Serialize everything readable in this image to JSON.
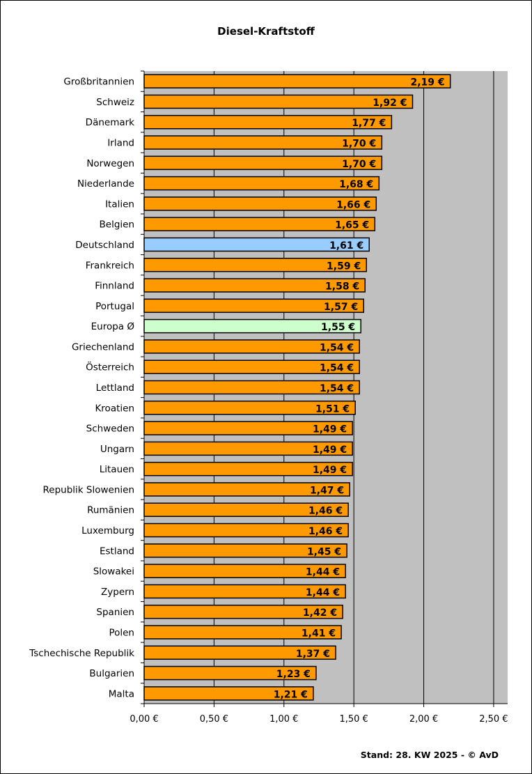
{
  "chart_data": {
    "type": "bar",
    "orientation": "horizontal",
    "title": "Diesel-Kraftstoff",
    "categories": [
      "Großbritannien",
      "Schweiz",
      "Dänemark",
      "Irland",
      "Norwegen",
      "Niederlande",
      "Italien",
      "Belgien",
      "Deutschland",
      "Frankreich",
      "Finnland",
      "Portugal",
      "Europa Ø",
      "Griechenland",
      "Österreich",
      "Lettland",
      "Kroatien",
      "Schweden",
      "Ungarn",
      "Litauen",
      "Republik Slowenien",
      "Rumänien",
      "Luxemburg",
      "Estland",
      "Slowakei",
      "Zypern",
      "Spanien",
      "Polen",
      "Tschechische Republik",
      "Bulgarien",
      "Malta"
    ],
    "values": [
      2.19,
      1.92,
      1.77,
      1.7,
      1.7,
      1.68,
      1.66,
      1.65,
      1.61,
      1.59,
      1.58,
      1.57,
      1.55,
      1.54,
      1.54,
      1.54,
      1.51,
      1.49,
      1.49,
      1.49,
      1.47,
      1.46,
      1.46,
      1.45,
      1.44,
      1.44,
      1.42,
      1.41,
      1.37,
      1.23,
      1.21
    ],
    "value_labels": [
      "2,19 €",
      "1,92 €",
      "1,77 €",
      "1,70 €",
      "1,70 €",
      "1,68 €",
      "1,66 €",
      "1,65 €",
      "1,61 €",
      "1,59 €",
      "1,58 €",
      "1,57 €",
      "1,55 €",
      "1,54 €",
      "1,54 €",
      "1,54 €",
      "1,51 €",
      "1,49 €",
      "1,49 €",
      "1,49 €",
      "1,47 €",
      "1,46 €",
      "1,46 €",
      "1,45 €",
      "1,44 €",
      "1,44 €",
      "1,42 €",
      "1,41 €",
      "1,37 €",
      "1,23 €",
      "1,21 €"
    ],
    "xlim": [
      0,
      2.6
    ],
    "ticks": [
      0,
      0.5,
      1.0,
      1.5,
      2.0,
      2.5
    ],
    "tick_labels": [
      "0,00 €",
      "0,50 €",
      "1,00 €",
      "1,50 €",
      "2,00 €",
      "2,50 €"
    ],
    "grid": "vertical",
    "colors": {
      "bar": "#FF9900",
      "highlight_deutschland": "#99CCFF",
      "highlight_europa": "#CCFFCC",
      "plot_background": "#C0C0C0"
    }
  },
  "footer": "Stand: 28. KW 2025 - © AvD"
}
